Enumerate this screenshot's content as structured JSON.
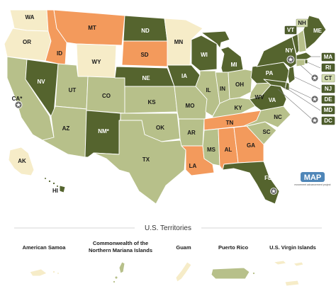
{
  "colors": {
    "dark": "#55642e",
    "light": "#b7c08a",
    "orange": "#f39a5c",
    "cream": "#f6ecc8",
    "logo": "#4f86b8"
  },
  "states": [
    {
      "code": "WA",
      "cat": "cream"
    },
    {
      "code": "OR",
      "cat": "cream"
    },
    {
      "code": "CA*",
      "cat": "light"
    },
    {
      "code": "NV",
      "cat": "dark"
    },
    {
      "code": "ID",
      "cat": "orange"
    },
    {
      "code": "MT",
      "cat": "orange"
    },
    {
      "code": "WY",
      "cat": "cream"
    },
    {
      "code": "UT",
      "cat": "light"
    },
    {
      "code": "AZ",
      "cat": "light"
    },
    {
      "code": "CO",
      "cat": "light"
    },
    {
      "code": "NM*",
      "cat": "dark"
    },
    {
      "code": "ND",
      "cat": "dark"
    },
    {
      "code": "SD",
      "cat": "orange"
    },
    {
      "code": "NE",
      "cat": "dark"
    },
    {
      "code": "KS",
      "cat": "light"
    },
    {
      "code": "OK",
      "cat": "light"
    },
    {
      "code": "TX",
      "cat": "light"
    },
    {
      "code": "MN",
      "cat": "cream"
    },
    {
      "code": "IA",
      "cat": "dark"
    },
    {
      "code": "MO",
      "cat": "light"
    },
    {
      "code": "AR",
      "cat": "light"
    },
    {
      "code": "LA",
      "cat": "orange"
    },
    {
      "code": "WI",
      "cat": "dark"
    },
    {
      "code": "IL",
      "cat": "light"
    },
    {
      "code": "MI",
      "cat": "dark"
    },
    {
      "code": "IN",
      "cat": "light"
    },
    {
      "code": "OH",
      "cat": "light"
    },
    {
      "code": "KY",
      "cat": "light"
    },
    {
      "code": "TN",
      "cat": "orange"
    },
    {
      "code": "MS",
      "cat": "light"
    },
    {
      "code": "AL",
      "cat": "orange"
    },
    {
      "code": "GA",
      "cat": "orange"
    },
    {
      "code": "FL",
      "cat": "dark"
    },
    {
      "code": "SC",
      "cat": "light"
    },
    {
      "code": "NC",
      "cat": "light"
    },
    {
      "code": "VA",
      "cat": "dark"
    },
    {
      "code": "WV",
      "cat": "light"
    },
    {
      "code": "PA",
      "cat": "dark"
    },
    {
      "code": "NY",
      "cat": "dark"
    },
    {
      "code": "VT",
      "cat": "dark"
    },
    {
      "code": "NH",
      "cat": "light"
    },
    {
      "code": "ME",
      "cat": "dark"
    },
    {
      "code": "MA",
      "cat": "dark"
    },
    {
      "code": "RI",
      "cat": "dark"
    },
    {
      "code": "CT",
      "cat": "light"
    },
    {
      "code": "NJ",
      "cat": "dark"
    },
    {
      "code": "DE",
      "cat": "dark"
    },
    {
      "code": "MD",
      "cat": "dark"
    },
    {
      "code": "DC",
      "cat": "dark"
    },
    {
      "code": "AK",
      "cat": "cream"
    },
    {
      "code": "HI",
      "cat": "dark"
    }
  ],
  "territories_title": "U.S. Territories",
  "territories": [
    {
      "name": "American Samoa",
      "cat": "cream"
    },
    {
      "name": "Commonwealth of the Northern Mariana Islands",
      "line1": "Commonwealth of the",
      "line2": "Northern Mariana Islands",
      "cat": "light"
    },
    {
      "name": "Guam",
      "cat": "cream"
    },
    {
      "name": "Puerto Rico",
      "cat": "light"
    },
    {
      "name": "U.S. Virgin Islands",
      "cat": "cream"
    }
  ],
  "logo": {
    "text": "MAP",
    "subtitle": "movement advancement project"
  },
  "icons": [
    "star-icon"
  ]
}
